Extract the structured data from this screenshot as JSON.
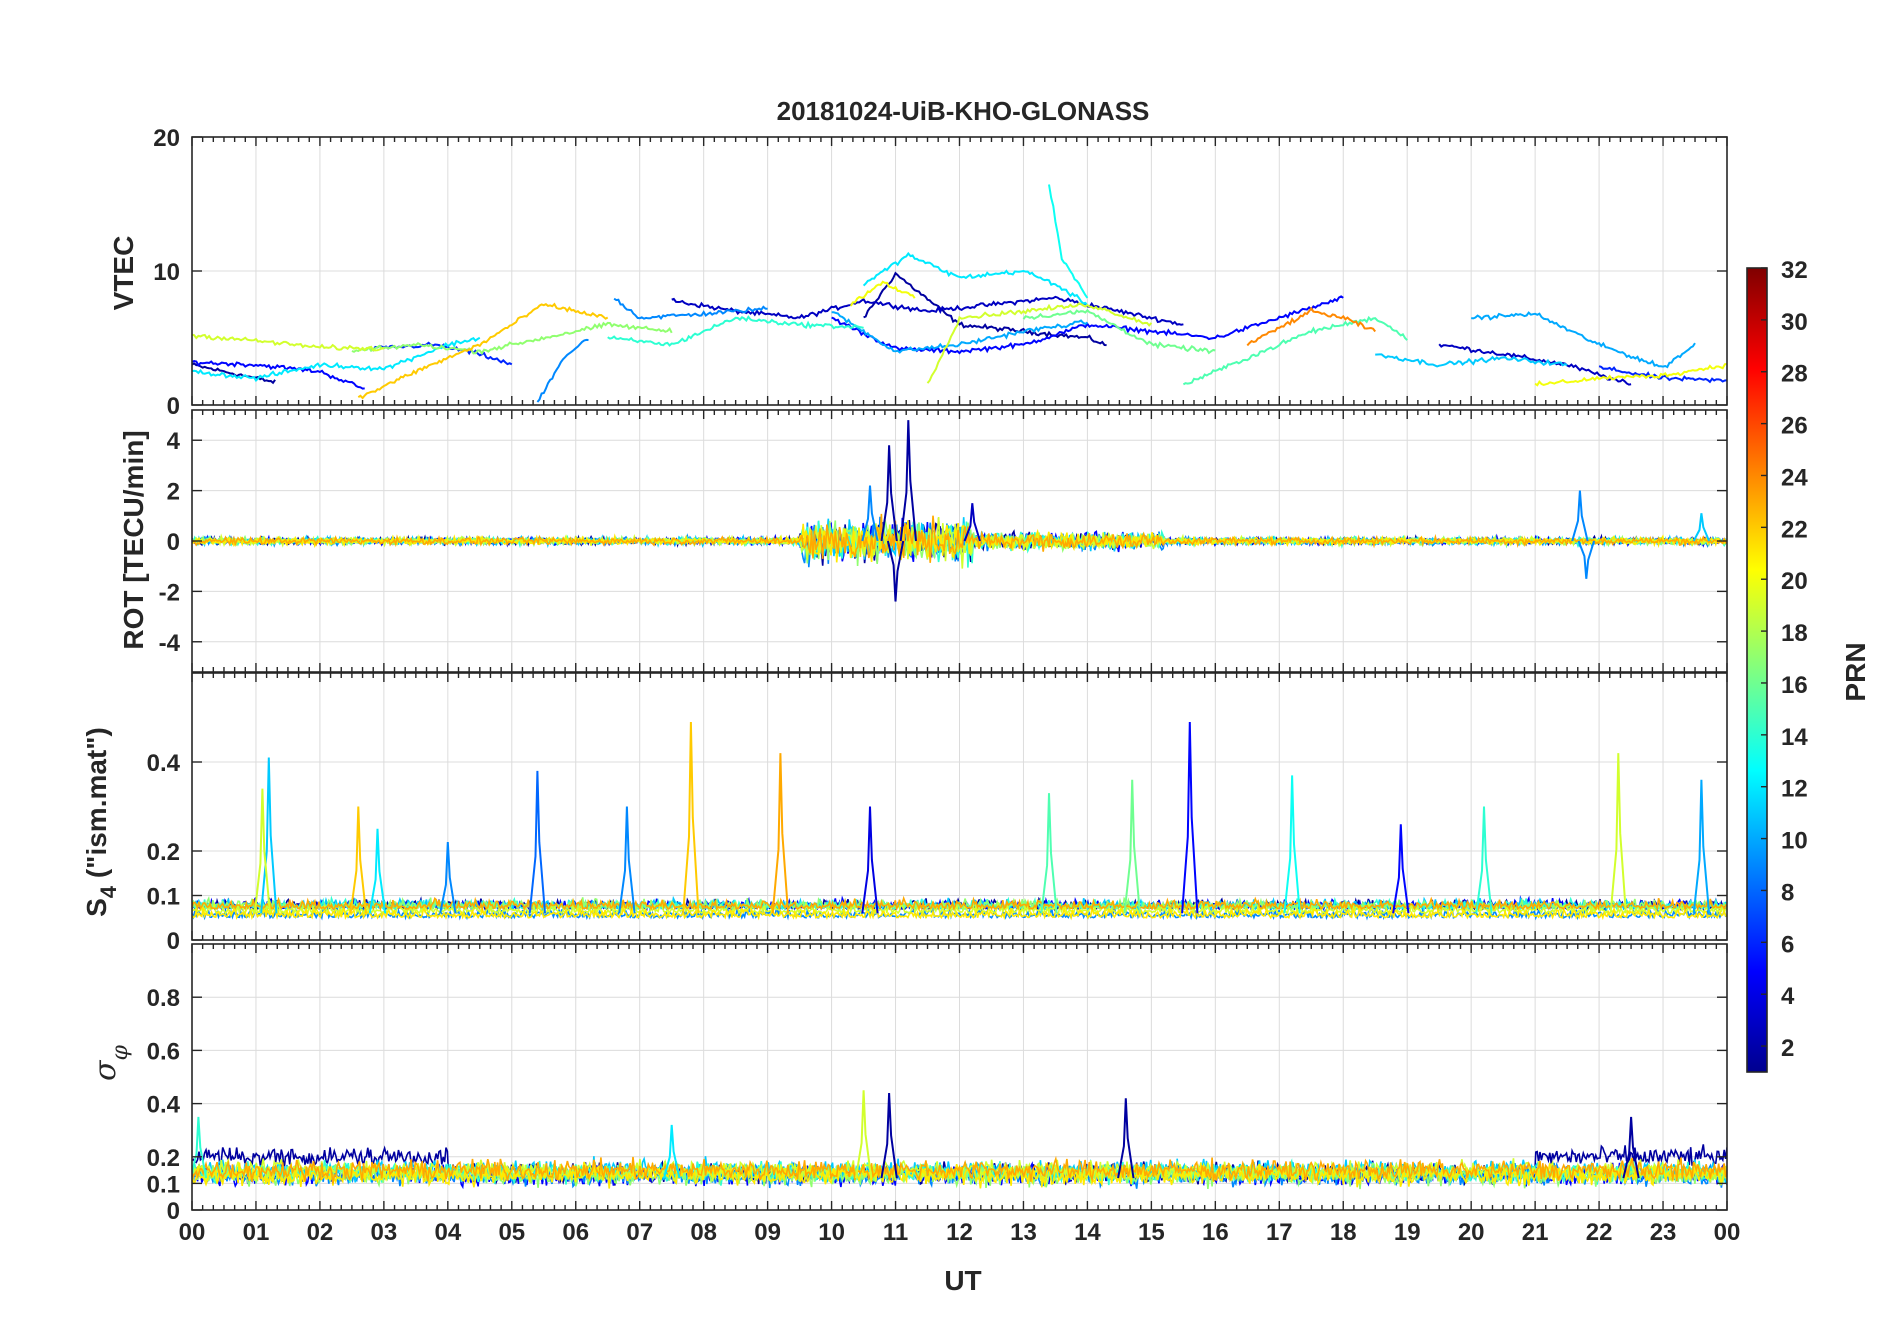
{
  "title": "20181024-UiB-KHO-GLONASS",
  "x_axis": {
    "label": "UT",
    "tick_values": [
      0,
      1,
      2,
      3,
      4,
      5,
      6,
      7,
      8,
      9,
      10,
      11,
      12,
      13,
      14,
      15,
      16,
      17,
      18,
      19,
      20,
      21,
      22,
      23,
      24
    ],
    "tick_labels": [
      "00",
      "01",
      "02",
      "03",
      "04",
      "05",
      "06",
      "07",
      "08",
      "09",
      "10",
      "11",
      "12",
      "13",
      "14",
      "15",
      "16",
      "17",
      "18",
      "19",
      "20",
      "21",
      "22",
      "23",
      "00"
    ]
  },
  "colorbar": {
    "label": "PRN",
    "range": [
      1,
      32
    ],
    "tick_labels": [
      "2",
      "4",
      "6",
      "8",
      "10",
      "12",
      "14",
      "16",
      "18",
      "20",
      "22",
      "24",
      "26",
      "28",
      "30",
      "32"
    ],
    "colormap": "jet",
    "colors": [
      "#00008f",
      "#0000ff",
      "#0080ff",
      "#00ffff",
      "#80ff80",
      "#ffff00",
      "#ff8000",
      "#ff0000",
      "#800000"
    ]
  },
  "panels": {
    "vtec": {
      "ylabel": "VTEC",
      "ytick_labels": [
        "0",
        "10",
        "20"
      ]
    },
    "rot": {
      "ylabel": "ROT [TECU/min]",
      "ytick_labels": [
        "-4",
        "-2",
        "0",
        "2",
        "4"
      ]
    },
    "s4": {
      "ylabel_sym": "S",
      "ylabel_sub": "4",
      "ylabel_rest": " (\"ism.mat\")",
      "ytick_labels": [
        "0",
        "0.1",
        "0.2",
        "0.4"
      ]
    },
    "sigma": {
      "ylabel_sym": "σ",
      "ylabel_sub": "φ",
      "ytick_labels": [
        "0",
        "0.1",
        "0.2",
        "0.4",
        "0.6",
        "0.8"
      ]
    }
  },
  "chart_data": [
    {
      "type": "line",
      "title": "20181024-UiB-KHO-GLONASS",
      "xlabel": "",
      "ylabel": "VTEC",
      "xlim": [
        0,
        24
      ],
      "ylim": [
        0,
        20
      ],
      "yticks": [
        0,
        10,
        20
      ],
      "grid": true,
      "series": [
        {
          "prn": 2,
          "x": [
            0.0,
            1.3
          ],
          "y": [
            3.0,
            1.7
          ]
        },
        {
          "prn": 2,
          "x": [
            10.5,
            11.0,
            12.0,
            13.0,
            14.0,
            14.3
          ],
          "y": [
            6.5,
            9.8,
            6.0,
            5.5,
            5.0,
            4.5
          ]
        },
        {
          "prn": 3,
          "x": [
            7.5,
            8.5,
            9.5,
            10.5,
            11.5,
            12.5,
            13.5,
            14.5,
            15.5
          ],
          "y": [
            7.8,
            7.0,
            6.5,
            7.8,
            7.0,
            7.5,
            8.0,
            7.0,
            6.0
          ]
        },
        {
          "prn": 3,
          "x": [
            19.5,
            20.5,
            21.5,
            22.5
          ],
          "y": [
            4.5,
            3.8,
            3.0,
            1.5
          ]
        },
        {
          "prn": 5,
          "x": [
            0.0,
            1.0,
            2.0,
            2.7
          ],
          "y": [
            3.2,
            3.0,
            2.5,
            1.2
          ]
        },
        {
          "prn": 5,
          "x": [
            10.0,
            11.0,
            12.0,
            13.0,
            14.0,
            15.0,
            16.0,
            17.0,
            18.0
          ],
          "y": [
            6.5,
            4.2,
            4.0,
            4.5,
            6.0,
            5.5,
            5.0,
            6.5,
            8.0
          ]
        },
        {
          "prn": 6,
          "x": [
            2.8,
            3.8,
            4.5,
            5.0
          ],
          "y": [
            4.2,
            4.5,
            3.8,
            3.0
          ]
        },
        {
          "prn": 6,
          "x": [
            22.0,
            23.0,
            24.0
          ],
          "y": [
            2.8,
            2.0,
            1.8
          ]
        },
        {
          "prn": 9,
          "x": [
            6.6,
            7.0,
            8.0,
            9.0
          ],
          "y": [
            8.0,
            6.5,
            6.8,
            7.2
          ]
        },
        {
          "prn": 9,
          "x": [
            5.4,
            5.8,
            6.2
          ],
          "y": [
            0.2,
            3.5,
            5.0
          ]
        },
        {
          "prn": 10,
          "x": [
            10.0,
            10.5,
            11.0,
            12.0,
            13.0,
            14.0
          ],
          "y": [
            7.0,
            5.5,
            4.0,
            4.5,
            5.5,
            6.2
          ]
        },
        {
          "prn": 10,
          "x": [
            20.0,
            21.0,
            22.0,
            23.0,
            23.5
          ],
          "y": [
            6.5,
            6.8,
            4.5,
            2.8,
            4.5
          ]
        },
        {
          "prn": 11,
          "x": [
            18.5,
            19.5,
            20.5,
            21.5
          ],
          "y": [
            3.8,
            3.0,
            3.5,
            3.0
          ]
        },
        {
          "prn": 12,
          "x": [
            0.0,
            1.0,
            2.0,
            3.0,
            4.0,
            4.5
          ],
          "y": [
            2.5,
            2.0,
            3.0,
            2.7,
            4.5,
            5.0
          ]
        },
        {
          "prn": 12,
          "x": [
            10.5,
            11.2,
            12.0,
            13.0,
            13.5,
            14.0
          ],
          "y": [
            9.0,
            11.2,
            9.5,
            10.0,
            9.0,
            7.5
          ]
        },
        {
          "prn": 13,
          "x": [
            13.4,
            13.6,
            14.0
          ],
          "y": [
            16.5,
            11.0,
            8.0
          ]
        },
        {
          "prn": 14,
          "x": [
            6.5,
            7.5,
            8.5,
            9.5,
            10.5
          ],
          "y": [
            5.0,
            4.5,
            6.5,
            6.0,
            5.8
          ]
        },
        {
          "prn": 15,
          "x": [
            15.5,
            16.5,
            17.5,
            18.5,
            19.0
          ],
          "y": [
            1.5,
            3.5,
            5.5,
            6.5,
            5.0
          ]
        },
        {
          "prn": 16,
          "x": [
            13.0,
            14.0,
            15.0,
            16.0
          ],
          "y": [
            6.5,
            7.0,
            4.5,
            4.0
          ]
        },
        {
          "prn": 17,
          "x": [
            2.5,
            3.5,
            4.5,
            5.5,
            6.5,
            7.5
          ],
          "y": [
            4.0,
            4.5,
            4.0,
            5.0,
            6.0,
            5.5
          ]
        },
        {
          "prn": 19,
          "x": [
            0.0,
            1.0,
            2.0,
            3.0
          ],
          "y": [
            5.2,
            4.8,
            4.3,
            4.2
          ]
        },
        {
          "prn": 19,
          "x": [
            11.5,
            12.0,
            13.0,
            14.0,
            15.0
          ],
          "y": [
            1.5,
            6.5,
            7.0,
            7.5,
            6.0
          ]
        },
        {
          "prn": 20,
          "x": [
            10.3,
            10.8,
            11.3
          ],
          "y": [
            7.5,
            9.2,
            8.0
          ]
        },
        {
          "prn": 20,
          "x": [
            21.0,
            22.0,
            23.0,
            24.0
          ],
          "y": [
            1.5,
            2.0,
            2.2,
            3.0
          ]
        },
        {
          "prn": 22,
          "x": [
            2.6,
            3.5,
            4.5,
            5.5,
            6.5
          ],
          "y": [
            0.5,
            2.5,
            4.5,
            7.5,
            6.5
          ]
        },
        {
          "prn": 24,
          "x": [
            16.5,
            17.5,
            18.0,
            18.5
          ],
          "y": [
            4.5,
            7.0,
            6.5,
            5.5
          ]
        }
      ]
    },
    {
      "type": "line",
      "xlabel": "",
      "ylabel": "ROT [TECU/min]",
      "xlim": [
        0,
        24
      ],
      "ylim": [
        -5.2,
        5.2
      ],
      "yticks": [
        -4,
        -2,
        0,
        2,
        4
      ],
      "grid": true,
      "series_summary": "ROT fluctuates around 0 for all PRNs with amplitude about ±0.3 outside 09:30–15:00 UT; disturbed interval 09:30–12:00 UT with largest spikes near 11:00 UT",
      "peaks": [
        {
          "prn": 2,
          "x": 11.2,
          "y": 4.8
        },
        {
          "prn": 2,
          "x": 10.9,
          "y": 3.8
        },
        {
          "prn": 2,
          "x": 11.0,
          "y": -2.4
        },
        {
          "prn": 9,
          "x": 10.6,
          "y": 2.2
        },
        {
          "prn": 9,
          "x": 21.7,
          "y": 2.0
        },
        {
          "prn": 9,
          "x": 21.8,
          "y": -1.5
        },
        {
          "prn": 11,
          "x": 23.6,
          "y": 1.1
        },
        {
          "prn": 3,
          "x": 12.2,
          "y": 1.5
        }
      ]
    },
    {
      "type": "line",
      "xlabel": "",
      "ylabel": "S4 (\"ism.mat\")",
      "xlim": [
        0,
        24
      ],
      "ylim": [
        0,
        0.6
      ],
      "yticks": [
        0,
        0.1,
        0.2,
        0.4
      ],
      "grid": true,
      "series_summary": "S4 background about 0.05 for all PRNs with intermittent spikes",
      "peaks": [
        {
          "prn": 11,
          "x": 1.2,
          "y": 0.41
        },
        {
          "prn": 19,
          "x": 1.1,
          "y": 0.34
        },
        {
          "prn": 22,
          "x": 2.6,
          "y": 0.3
        },
        {
          "prn": 12,
          "x": 2.9,
          "y": 0.25
        },
        {
          "prn": 9,
          "x": 4.0,
          "y": 0.22
        },
        {
          "prn": 8,
          "x": 5.4,
          "y": 0.38
        },
        {
          "prn": 9,
          "x": 6.8,
          "y": 0.3
        },
        {
          "prn": 22,
          "x": 7.8,
          "y": 0.49
        },
        {
          "prn": 23,
          "x": 9.2,
          "y": 0.42
        },
        {
          "prn": 4,
          "x": 10.6,
          "y": 0.3
        },
        {
          "prn": 15,
          "x": 13.4,
          "y": 0.33
        },
        {
          "prn": 16,
          "x": 14.7,
          "y": 0.36
        },
        {
          "prn": 5,
          "x": 15.6,
          "y": 0.49
        },
        {
          "prn": 13,
          "x": 17.2,
          "y": 0.37
        },
        {
          "prn": 5,
          "x": 18.9,
          "y": 0.26
        },
        {
          "prn": 14,
          "x": 20.2,
          "y": 0.3
        },
        {
          "prn": 19,
          "x": 22.3,
          "y": 0.42
        },
        {
          "prn": 10,
          "x": 23.6,
          "y": 0.36
        }
      ]
    },
    {
      "type": "line",
      "xlabel": "UT",
      "ylabel": "σφ",
      "xlim": [
        0,
        24
      ],
      "ylim": [
        0,
        1
      ],
      "yticks": [
        0,
        0.1,
        0.2,
        0.4,
        0.6,
        0.8
      ],
      "grid": true,
      "series_summary": "Phase scintillation index about 0.1–0.2 all day; PRN 2 elevated about 0.15–0.3 during 00–04 UT and 21–24 UT",
      "peaks": [
        {
          "prn": 19,
          "x": 10.5,
          "y": 0.45
        },
        {
          "prn": 2,
          "x": 10.9,
          "y": 0.44
        },
        {
          "prn": 2,
          "x": 14.6,
          "y": 0.42
        },
        {
          "prn": 12,
          "x": 7.5,
          "y": 0.32
        },
        {
          "prn": 2,
          "x": 22.5,
          "y": 0.35
        },
        {
          "prn": 14,
          "x": 0.1,
          "y": 0.35
        }
      ]
    }
  ]
}
